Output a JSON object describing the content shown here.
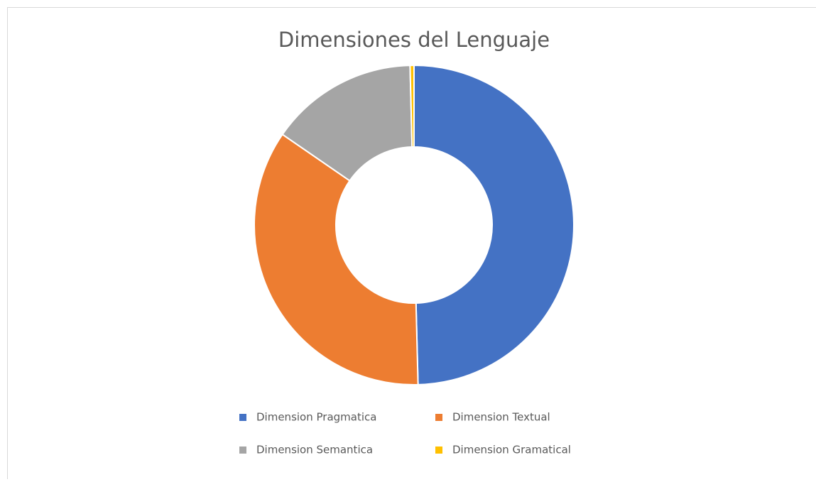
{
  "chart_data": {
    "type": "donut",
    "title": "Dimensiones del Lenguaje",
    "categories": [
      "Dimension Pragmatica",
      "Dimension Textual",
      "Dimension Semantica",
      "Dimension Gramatical"
    ],
    "values": [
      49.6,
      35,
      15,
      0.4
    ],
    "colors": [
      "#4472c4",
      "#ed7d31",
      "#a5a5a5",
      "#ffc000"
    ],
    "legend": "bottom"
  }
}
